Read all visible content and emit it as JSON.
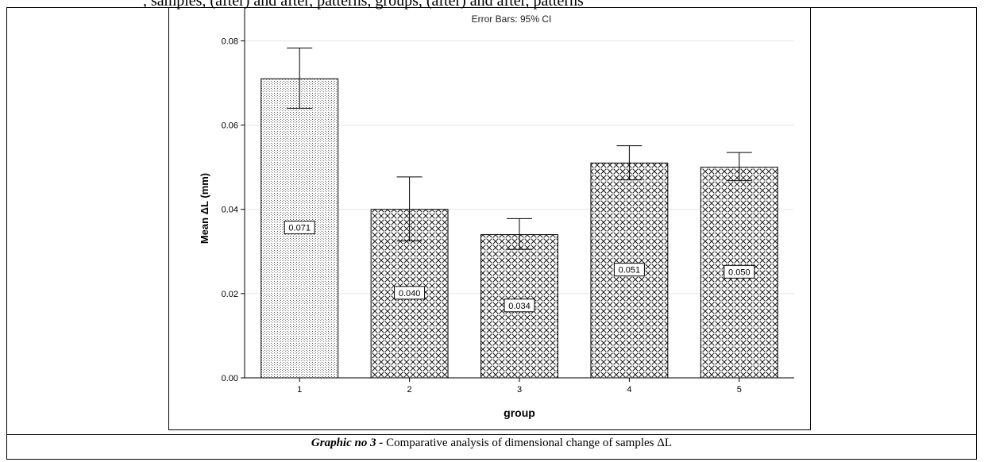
{
  "page": {
    "top_fragment": ", samples, (after) and after, patterns, groups, (after) and after, patterns"
  },
  "caption": {
    "bold_part": "Graphic no 3 -",
    "rest": " Comparative analysis of dimensional change of samples ΔL"
  },
  "chart_data": {
    "type": "bar",
    "title": "Error Bars: 95% CI",
    "xlabel": "group",
    "ylabel": "Mean ΔL (mm)",
    "categories": [
      "1",
      "2",
      "3",
      "4",
      "5"
    ],
    "values": [
      0.071,
      0.04,
      0.034,
      0.051,
      0.05
    ],
    "value_labels": [
      "0.071",
      "0.040",
      "0.034",
      "0.051",
      "0.050"
    ],
    "error_low": [
      0.064,
      0.0325,
      0.0305,
      0.047,
      0.0468
    ],
    "error_high": [
      0.0783,
      0.0477,
      0.0378,
      0.0551,
      0.0535
    ],
    "patterns": [
      "vertical-dots",
      "crosshatch-dots",
      "crosshatch-dots",
      "crosshatch-dots",
      "crosshatch-dots"
    ],
    "ylim": [
      0,
      0.088
    ],
    "yticks": [
      0.0,
      0.02,
      0.04,
      0.06,
      0.08
    ],
    "ytick_labels": [
      "0.00",
      "0.02",
      "0.04",
      "0.06",
      "0.08"
    ],
    "grid": true,
    "colors": {
      "bar_fill": "#ffffff",
      "bar_edge": "#000000",
      "grid": "#e6e6e6"
    }
  }
}
